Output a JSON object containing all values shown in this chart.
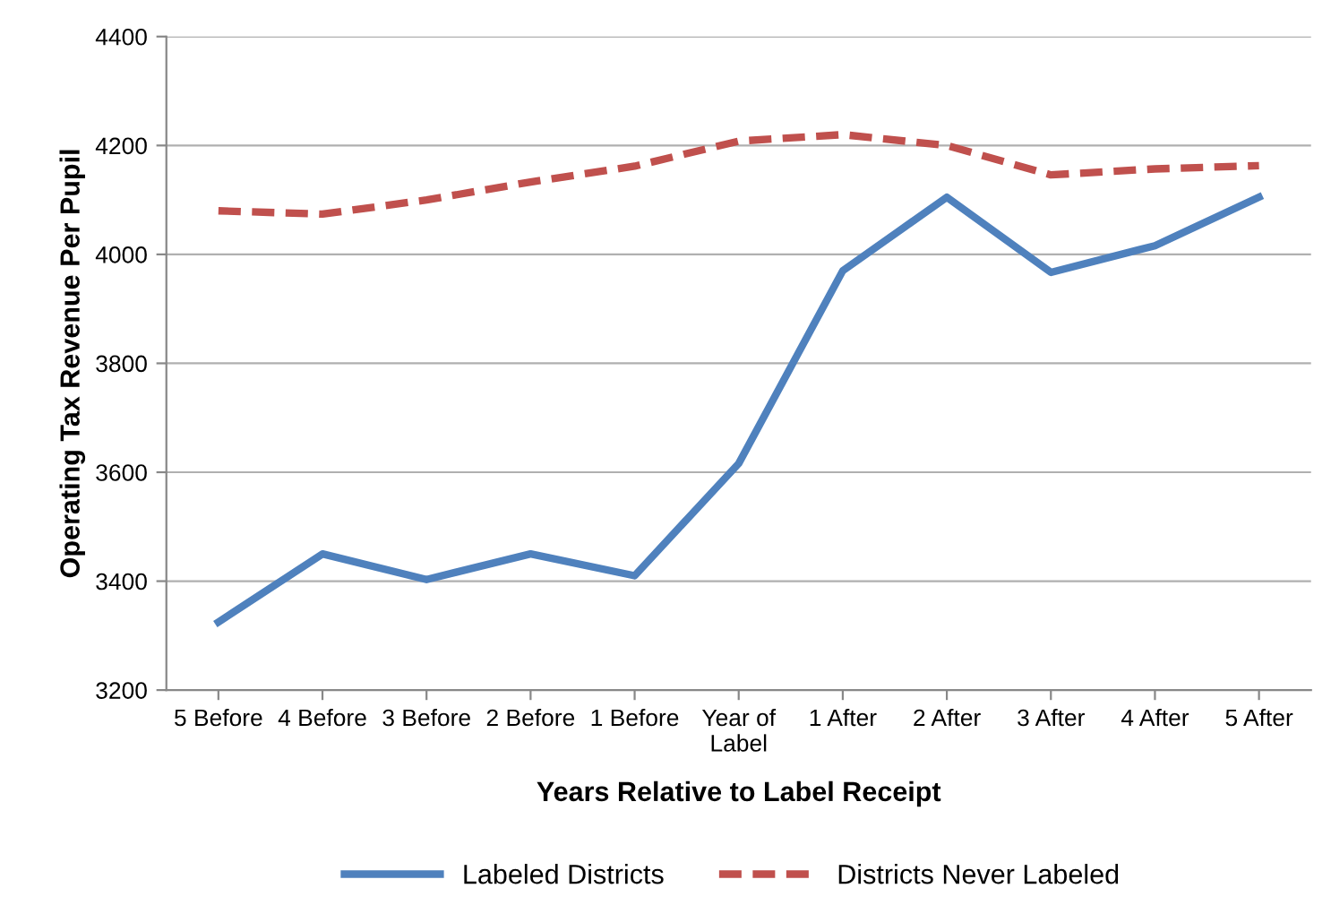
{
  "chart_data": {
    "type": "line",
    "xlabel": "Years Relative to Label Receipt",
    "ylabel": "Operating Tax Revenue Per Pupil",
    "categories": [
      "5 Before",
      "4 Before",
      "3 Before",
      "2 Before",
      "1 Before",
      "Year of\nLabel",
      "1 After",
      "2 After",
      "3 After",
      "4 After",
      "5 After"
    ],
    "series": [
      {
        "name": "Labeled Districts",
        "color": "#4f81bd",
        "line_style": "solid",
        "values": [
          3325,
          3450,
          3403,
          3450,
          3410,
          3616,
          3970,
          4105,
          3967,
          4016,
          4105
        ]
      },
      {
        "name": "Districts Never Labeled",
        "color": "#c0504d",
        "line_style": "dashed",
        "values": [
          4080,
          4074,
          4100,
          4133,
          4162,
          4208,
          4220,
          4200,
          4146,
          4157,
          4163
        ]
      }
    ],
    "ylim": [
      3200,
      4400
    ],
    "yticks": [
      3200,
      3400,
      3600,
      3800,
      4000,
      4200,
      4400
    ],
    "grid": "y",
    "legend": "bottom",
    "marker": "none"
  }
}
